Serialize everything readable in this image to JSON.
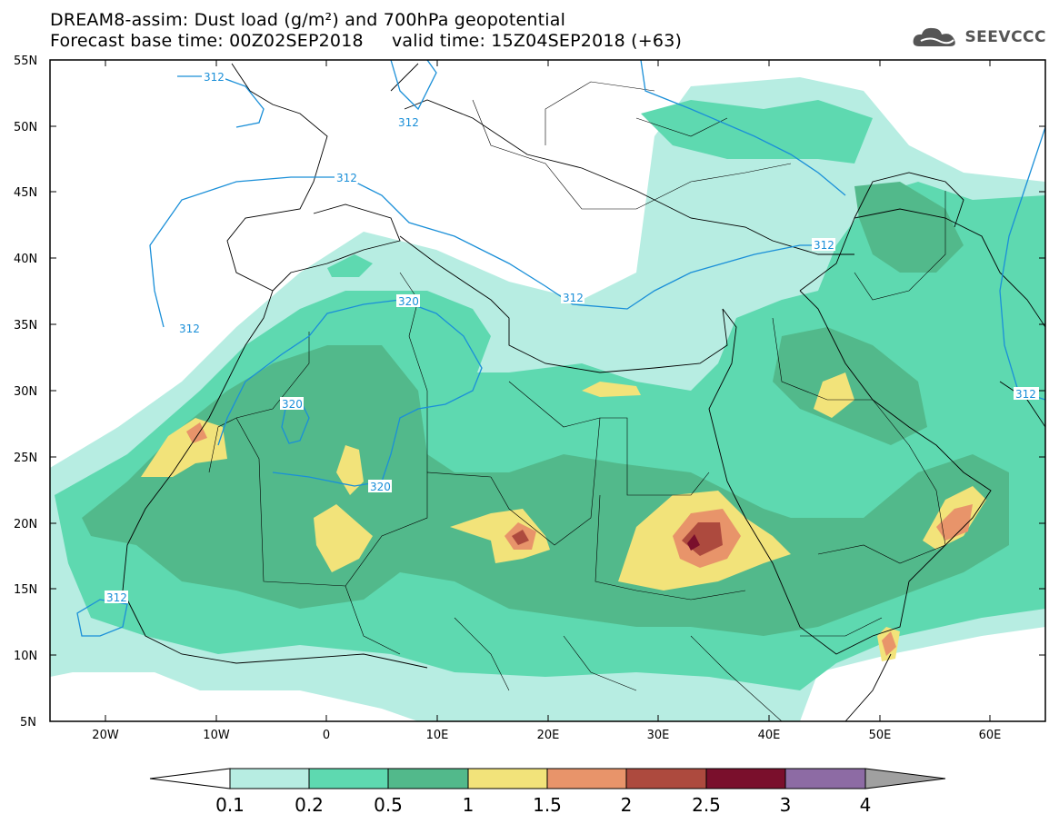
{
  "title": {
    "line1": "DREAM8-assim: Dust load (g/m²) and 700hPa geopotential",
    "line2": "Forecast base time: 00Z02SEP2018     valid time: 15Z04SEP2018 (+63)"
  },
  "logo": {
    "text": "SEEVCCC",
    "icon": "cloud-icon"
  },
  "map": {
    "lat_labels": [
      "55N",
      "50N",
      "45N",
      "40N",
      "35N",
      "30N",
      "25N",
      "20N",
      "15N",
      "10N",
      "5N"
    ],
    "lon_labels": [
      "20W",
      "10W",
      "0",
      "10E",
      "20E",
      "30E",
      "40E",
      "50E",
      "60E"
    ],
    "contour_labels": [
      "312",
      "312",
      "312",
      "312",
      "312",
      "312",
      "312",
      "320",
      "320",
      "320",
      "312"
    ],
    "colors": {
      "contour": "#1a8fd8",
      "coast": "#000000"
    }
  },
  "colorbar": {
    "labels": [
      "0.1",
      "0.2",
      "0.5",
      "1",
      "1.5",
      "2",
      "2.5",
      "3",
      "4"
    ],
    "colors": [
      "#ffffff",
      "#b7ede2",
      "#5ed9b0",
      "#52b98b",
      "#f2e37a",
      "#e8946a",
      "#ad4a3e",
      "#7a0f2c",
      "#8d6ba4",
      "#a0a0a0"
    ]
  }
}
